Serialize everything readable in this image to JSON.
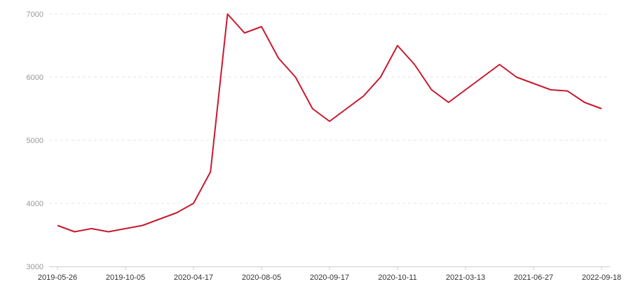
{
  "chart_data": {
    "type": "line",
    "title": "",
    "xlabel": "",
    "ylabel": "",
    "ylim": [
      3000,
      7000
    ],
    "y_ticks": [
      3000,
      4000,
      5000,
      6000,
      7000
    ],
    "x_tick_labels": [
      "2019-05-26",
      "2019-10-05",
      "2020-04-17",
      "2020-08-05",
      "2020-09-17",
      "2020-10-11",
      "2021-03-13",
      "2021-06-27",
      "2022-09-18"
    ],
    "x_tick_every": 4,
    "grid": true,
    "legend": "none",
    "values": [
      3650,
      3550,
      3600,
      3550,
      3600,
      3650,
      3750,
      3850,
      4000,
      4500,
      7000,
      6700,
      6800,
      6300,
      6000,
      5500,
      5300,
      5500,
      5700,
      6000,
      6500,
      6200,
      5800,
      5600,
      5800,
      6000,
      6200,
      6000,
      5900,
      5800,
      5780,
      5600,
      5500
    ],
    "colors": {
      "line": "#c8192e",
      "grid": "#e6e6e6",
      "axis": "#cccccc",
      "ytext": "#999999",
      "xtext": "#333333"
    }
  }
}
